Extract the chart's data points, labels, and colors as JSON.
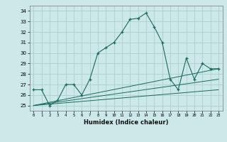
{
  "title": "",
  "xlabel": "Humidex (Indice chaleur)",
  "ylabel": "",
  "bg_color": "#cce8e8",
  "grid_color": "#aacfcf",
  "line_color": "#1a6b5e",
  "xlim": [
    -0.5,
    23.5
  ],
  "ylim": [
    24.5,
    34.5
  ],
  "xticks": [
    0,
    1,
    2,
    3,
    4,
    5,
    6,
    7,
    8,
    9,
    10,
    11,
    12,
    13,
    14,
    15,
    16,
    17,
    18,
    19,
    20,
    21,
    22,
    23
  ],
  "yticks": [
    25,
    26,
    27,
    28,
    29,
    30,
    31,
    32,
    33,
    34
  ],
  "series1_x": [
    0,
    1,
    2,
    3,
    4,
    5,
    6,
    7,
    8,
    9,
    10,
    11,
    12,
    13,
    14,
    15,
    16,
    17,
    18,
    19,
    20,
    21,
    22,
    23
  ],
  "series1_y": [
    26.5,
    26.5,
    25.0,
    25.5,
    27.0,
    27.0,
    26.0,
    27.5,
    30.0,
    30.5,
    31.0,
    32.0,
    33.2,
    33.3,
    33.8,
    32.5,
    31.0,
    27.5,
    26.5,
    29.5,
    27.5,
    29.0,
    28.5,
    28.5
  ],
  "series2_x": [
    0,
    23
  ],
  "series2_y": [
    25.0,
    26.5
  ],
  "series3_x": [
    0,
    23
  ],
  "series3_y": [
    25.0,
    27.5
  ],
  "series4_x": [
    0,
    23
  ],
  "series4_y": [
    25.0,
    28.5
  ]
}
